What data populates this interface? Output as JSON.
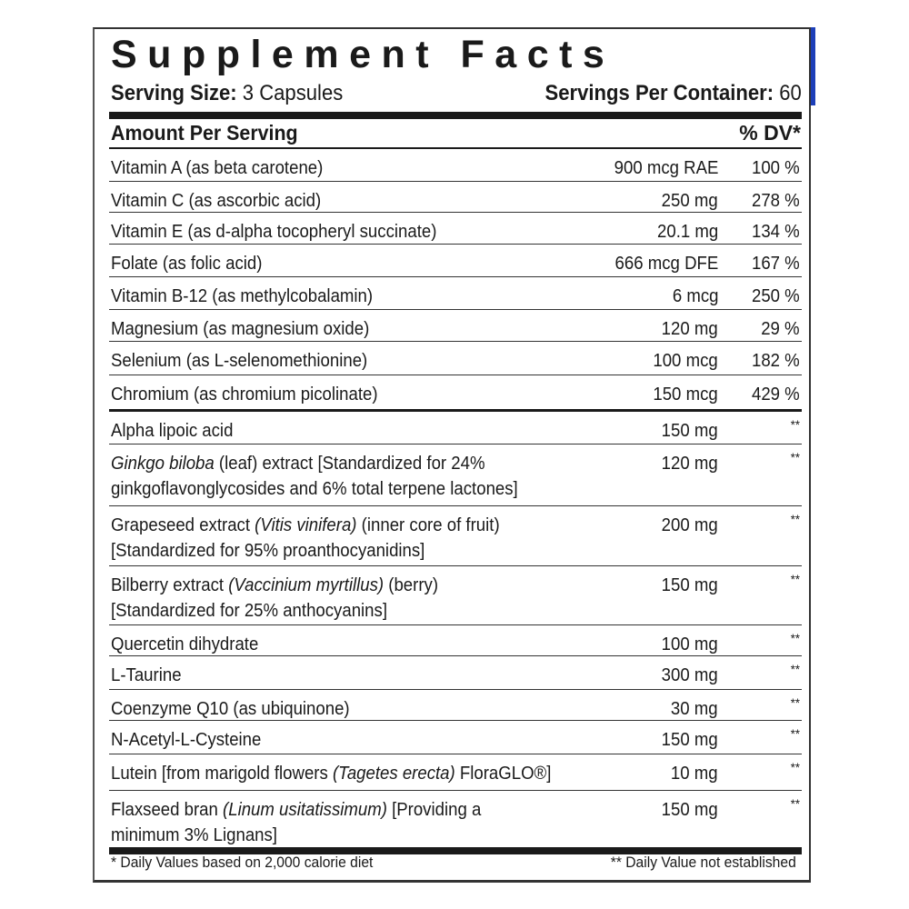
{
  "title": "Supplement Facts",
  "serving_size": {
    "label": "Serving Size:",
    "value": " 3 Capsules"
  },
  "servings_per_container": {
    "label": "Servings Per Container:",
    "value": " 60"
  },
  "header": {
    "amount": "Amount Per Serving",
    "dv": "% DV*"
  },
  "rows": [
    {
      "pre": "Vitamin A (as beta carotene)",
      "amount": "900 mcg RAE",
      "dv": "100 %"
    },
    {
      "pre": "Vitamin C (as ascorbic acid)",
      "amount": "250 mg",
      "dv": "278 %"
    },
    {
      "pre": "Vitamin E (as d-alpha tocopheryl succinate)",
      "amount": "20.1 mg",
      "dv": "134 %"
    },
    {
      "pre": "Folate (as folic acid)",
      "amount": "666 mcg DFE",
      "dv": "167 %"
    },
    {
      "pre": "Vitamin B-12 (as methylcobalamin)",
      "amount": "6 mcg",
      "dv": "250 %"
    },
    {
      "pre": "Magnesium (as magnesium oxide)",
      "amount": "120 mg",
      "dv": "29 %"
    },
    {
      "pre": "Selenium (as L-selenomethionine)",
      "amount": "100 mcg",
      "dv": "182 %"
    },
    {
      "pre": "Chromium (as chromium picolinate)",
      "amount": "150 mcg",
      "dv": "429 %"
    },
    {
      "pre": "Alpha lipoic acid",
      "amount": "150 mg",
      "dv": "**"
    },
    {
      "italic": "Ginkgo biloba",
      "post": " (leaf) extract [Standardized for 24%\nginkgoflavonglycosides and 6% total terpene lactones]",
      "amount": "120 mg",
      "dv": "**"
    },
    {
      "pre": "Grapeseed extract ",
      "italic": "(Vitis vinifera)",
      "post": " (inner core of fruit)\n[Standardized for 95% proanthocyanidins]",
      "amount": "200 mg",
      "dv": "**"
    },
    {
      "pre": "Bilberry extract ",
      "italic": "(Vaccinium myrtillus)",
      "post": " (berry)\n[Standardized for 25% anthocyanins]",
      "amount": "150 mg",
      "dv": "**"
    },
    {
      "pre": "Quercetin dihydrate",
      "amount": "100 mg",
      "dv": "**"
    },
    {
      "pre": "L-Taurine",
      "amount": "300 mg",
      "dv": "**"
    },
    {
      "pre": "Coenzyme Q10 (as ubiquinone)",
      "amount": "30 mg",
      "dv": "**"
    },
    {
      "pre": "N-Acetyl-L-Cysteine",
      "amount": "150 mg",
      "dv": "**"
    },
    {
      "pre": "Lutein [from marigold flowers ",
      "italic": "(Tagetes erecta)",
      "post": " FloraGLO®]",
      "amount": "10 mg",
      "dv": "**"
    },
    {
      "pre": "Flaxseed bran ",
      "italic": "(Linum usitatissimum)",
      "post": " [Providing a\nminimum 3% Lignans]",
      "amount": "150 mg",
      "dv": "**"
    }
  ],
  "footer": {
    "left": "* Daily Values based on 2,000 calorie diet",
    "right": "** Daily Value not established"
  },
  "colors": {
    "accent_edge": "#1d3fb8",
    "text": "#1a1a1a"
  }
}
